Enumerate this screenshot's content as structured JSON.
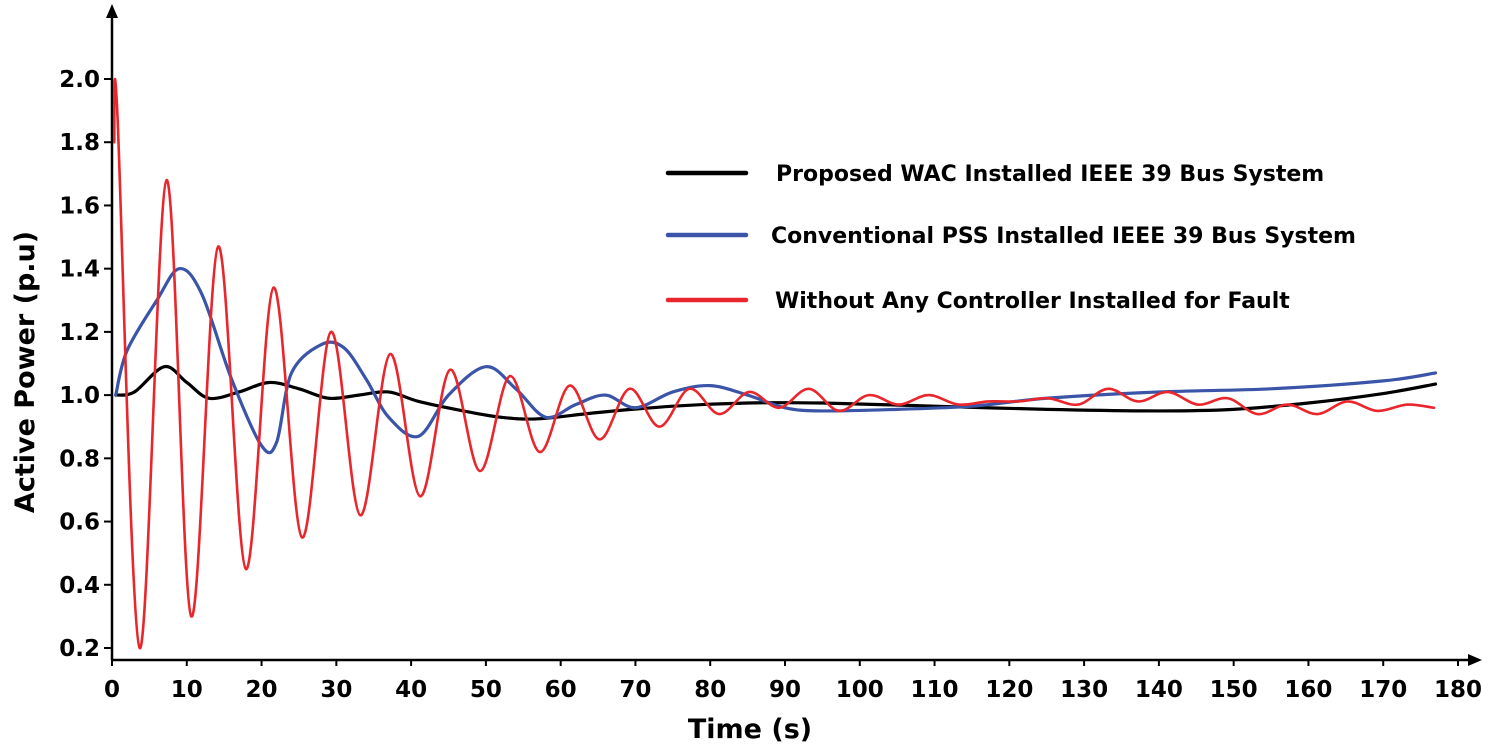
{
  "chart_data": {
    "type": "line",
    "title": "",
    "xlabel": "Time (s)",
    "ylabel": "Active Power (p.u)",
    "xlim": [
      0,
      180
    ],
    "ylim": [
      0.15,
      2.1
    ],
    "x_ticks": [
      0,
      10,
      20,
      30,
      40,
      50,
      60,
      70,
      80,
      90,
      100,
      110,
      120,
      130,
      140,
      150,
      160,
      170,
      180
    ],
    "y_ticks": [
      0.2,
      0.4,
      0.6,
      0.8,
      1.0,
      1.2,
      1.4,
      1.6,
      1.8,
      2.0
    ],
    "legend_position": "top-right",
    "grid": false,
    "series": [
      {
        "name": "Proposed WAC Installed IEEE 39 Bus System",
        "color": "#000000",
        "x": [
          0.5,
          3,
          7,
          10,
          13,
          17,
          21,
          25,
          29,
          33,
          37,
          41,
          47,
          52,
          57,
          65,
          75,
          85,
          95,
          110,
          125,
          140,
          150,
          160,
          170,
          177
        ],
        "y": [
          1.0,
          1.01,
          1.09,
          1.04,
          0.99,
          1.01,
          1.04,
          1.02,
          0.99,
          1.0,
          1.01,
          0.98,
          0.95,
          0.93,
          0.925,
          0.945,
          0.965,
          0.975,
          0.975,
          0.965,
          0.955,
          0.95,
          0.955,
          0.975,
          1.005,
          1.035
        ]
      },
      {
        "name": "Conventional PSS Installed IEEE 39 Bus System",
        "color": "#3a54a8",
        "x": [
          0.5,
          2,
          6,
          9,
          12,
          16,
          20,
          22,
          24,
          28,
          31,
          34,
          37,
          41,
          45,
          50,
          54,
          58,
          62,
          66,
          70,
          75,
          80,
          85,
          90,
          95,
          105,
          115,
          125,
          140,
          155,
          170,
          177
        ],
        "y": [
          1.0,
          1.14,
          1.3,
          1.4,
          1.32,
          1.05,
          0.84,
          0.85,
          1.07,
          1.16,
          1.15,
          1.05,
          0.93,
          0.87,
          1.0,
          1.09,
          1.02,
          0.93,
          0.97,
          1.0,
          0.96,
          1.01,
          1.03,
          1.0,
          0.96,
          0.95,
          0.955,
          0.965,
          0.99,
          1.01,
          1.02,
          1.045,
          1.07
        ]
      },
      {
        "name": "Without Any Controller Installed for Fault",
        "color": "#e8262c",
        "x": [
          0.3,
          0.7,
          3.7,
          7.3,
          10.6,
          14.2,
          17.9,
          21.6,
          25.4,
          29.3,
          33.2,
          37.2,
          41.2,
          45.2,
          49.2,
          53.2,
          57.2,
          61.2,
          65.2,
          69.2,
          73.2,
          77.2,
          81.2,
          85.2,
          89.2,
          93.2,
          97.2,
          101.2,
          105.2,
          109.2,
          113.2,
          117.2,
          121.2,
          125.2,
          129.2,
          133.2,
          137.2,
          141.2,
          145.2,
          149.2,
          153.2,
          157.2,
          161.2,
          165.2,
          169.2,
          173.2,
          176.8
        ],
        "y": [
          1.8,
          1.9,
          0.2,
          1.68,
          0.3,
          1.47,
          0.45,
          1.34,
          0.55,
          1.2,
          0.62,
          1.13,
          0.68,
          1.08,
          0.76,
          1.06,
          0.82,
          1.03,
          0.86,
          1.02,
          0.9,
          1.02,
          0.94,
          1.01,
          0.96,
          1.02,
          0.95,
          1.0,
          0.97,
          1.0,
          0.97,
          0.98,
          0.98,
          0.99,
          0.97,
          1.02,
          0.98,
          1.01,
          0.97,
          0.99,
          0.94,
          0.97,
          0.94,
          0.98,
          0.95,
          0.97,
          0.96
        ]
      }
    ]
  }
}
